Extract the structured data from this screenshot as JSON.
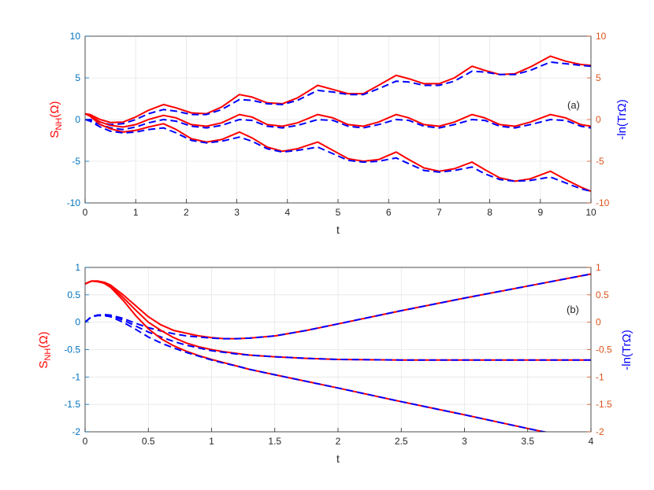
{
  "colors": {
    "left_axis": "#0072BD",
    "right_axis": "#D95319",
    "solid": "#ff0000",
    "dashed": "#0000ff",
    "grid": "#e6e6e6",
    "box": "#262626"
  },
  "chart_data": [
    {
      "type": "line",
      "panel_label": "(a)",
      "xlabel": "t",
      "ylabel_left": {
        "main": "S",
        "sub": "NH",
        "rest": "(Ω)"
      },
      "ylabel_right": "-ln(TrΩ)",
      "xlim": [
        0,
        10
      ],
      "ylim": [
        -10,
        10
      ],
      "grid": true,
      "xticks": [
        "0",
        "1",
        "2",
        "3",
        "4",
        "5",
        "6",
        "7",
        "8",
        "9",
        "10"
      ],
      "yticks_left": [
        "10",
        "5",
        "0",
        "-5",
        "-10"
      ],
      "yticks_right": [
        "10",
        "5",
        "0",
        "-5",
        "-10"
      ],
      "tick_values_x": [
        0,
        1,
        2,
        3,
        4,
        5,
        6,
        7,
        8,
        9,
        10
      ],
      "tick_values_y": [
        10,
        5,
        0,
        -5,
        -10
      ],
      "series": [
        {
          "style": "solid",
          "color": "#ff0000",
          "x": [
            0,
            0.1,
            0.3,
            0.5,
            0.75,
            1,
            1.25,
            1.55,
            1.8,
            2.1,
            2.4,
            2.7,
            3.05,
            3.3,
            3.6,
            3.9,
            4.2,
            4.6,
            4.9,
            5.2,
            5.5,
            5.8,
            6.15,
            6.4,
            6.7,
            7,
            7.3,
            7.65,
            7.9,
            8.2,
            8.5,
            8.8,
            9.2,
            9.5,
            9.8,
            10
          ],
          "y": [
            0.7,
            0.6,
            0,
            -0.35,
            -0.3,
            0.3,
            1.1,
            1.8,
            1.4,
            0.8,
            0.7,
            1.5,
            3.0,
            2.7,
            2.0,
            1.9,
            2.6,
            4.1,
            3.6,
            3.1,
            3.1,
            4.1,
            5.3,
            4.9,
            4.3,
            4.3,
            5.0,
            6.4,
            5.9,
            5.4,
            5.5,
            6.3,
            7.6,
            7.0,
            6.6,
            6.5
          ]
        },
        {
          "style": "dashed",
          "color": "#0000ff",
          "x": [
            0,
            0.1,
            0.3,
            0.5,
            0.75,
            1,
            1.25,
            1.55,
            1.8,
            2.1,
            2.4,
            2.7,
            3.05,
            3.3,
            3.6,
            3.9,
            4.2,
            4.6,
            4.9,
            5.2,
            5.5,
            5.8,
            6.15,
            6.4,
            6.7,
            7,
            7.3,
            7.65,
            7.9,
            8.2,
            8.5,
            8.8,
            9.2,
            9.5,
            9.8,
            10
          ],
          "y": [
            0,
            0,
            -0.3,
            -0.6,
            -0.5,
            0,
            0.7,
            1.2,
            1.0,
            0.6,
            0.6,
            1.2,
            2.4,
            2.3,
            1.9,
            1.8,
            2.3,
            3.5,
            3.3,
            3.0,
            3.0,
            3.7,
            4.6,
            4.5,
            4.1,
            4.1,
            4.6,
            5.8,
            5.7,
            5.4,
            5.4,
            5.9,
            6.9,
            6.7,
            6.5,
            6.4
          ]
        },
        {
          "style": "solid",
          "color": "#ff0000",
          "x": [
            0,
            0.1,
            0.3,
            0.5,
            0.75,
            1,
            1.25,
            1.55,
            1.8,
            2.1,
            2.4,
            2.7,
            3.05,
            3.3,
            3.6,
            3.9,
            4.2,
            4.6,
            4.9,
            5.2,
            5.5,
            5.8,
            6.15,
            6.4,
            6.7,
            7,
            7.3,
            7.65,
            7.9,
            8.2,
            8.5,
            8.8,
            9.2,
            9.5,
            9.8,
            10
          ],
          "y": [
            0.7,
            0.5,
            -0.3,
            -0.7,
            -0.9,
            -0.6,
            0,
            0.5,
            0.2,
            -0.6,
            -0.8,
            -0.4,
            0.6,
            0.3,
            -0.6,
            -0.8,
            -0.4,
            0.6,
            0.2,
            -0.6,
            -0.8,
            -0.3,
            0.6,
            0.2,
            -0.6,
            -0.8,
            -0.3,
            0.6,
            0.2,
            -0.6,
            -0.8,
            -0.3,
            0.6,
            0.2,
            -0.6,
            -0.8
          ]
        },
        {
          "style": "dashed",
          "color": "#0000ff",
          "x": [
            0,
            0.1,
            0.3,
            0.5,
            0.75,
            1,
            1.25,
            1.55,
            1.8,
            2.1,
            2.4,
            2.7,
            3.05,
            3.3,
            3.6,
            3.9,
            4.2,
            4.6,
            4.9,
            5.2,
            5.5,
            5.8,
            6.15,
            6.4,
            6.7,
            7,
            7.3,
            7.65,
            7.9,
            8.2,
            8.5,
            8.8,
            9.2,
            9.5,
            9.8,
            10
          ],
          "y": [
            0,
            -0.1,
            -0.6,
            -1.0,
            -1.2,
            -0.9,
            -0.4,
            0,
            -0.2,
            -0.8,
            -1.0,
            -0.7,
            0,
            -0.1,
            -0.8,
            -1.0,
            -0.7,
            0,
            -0.1,
            -0.8,
            -1.0,
            -0.6,
            0,
            -0.1,
            -0.8,
            -1.0,
            -0.6,
            0,
            -0.1,
            -0.8,
            -1.0,
            -0.6,
            0,
            -0.1,
            -0.8,
            -1.0
          ]
        },
        {
          "style": "solid",
          "color": "#ff0000",
          "x": [
            0,
            0.1,
            0.3,
            0.5,
            0.75,
            1,
            1.25,
            1.55,
            1.8,
            2.1,
            2.4,
            2.7,
            3.05,
            3.3,
            3.6,
            3.9,
            4.2,
            4.6,
            4.9,
            5.2,
            5.5,
            5.8,
            6.15,
            6.4,
            6.7,
            7,
            7.3,
            7.65,
            7.9,
            8.2,
            8.5,
            8.8,
            9.2,
            9.5,
            9.8,
            10
          ],
          "y": [
            0.7,
            0.4,
            -0.6,
            -1.1,
            -1.5,
            -1.3,
            -0.9,
            -0.5,
            -1.2,
            -2.3,
            -2.7,
            -2.4,
            -1.5,
            -2.2,
            -3.3,
            -3.8,
            -3.5,
            -2.7,
            -3.7,
            -4.7,
            -5.0,
            -4.8,
            -3.9,
            -4.8,
            -5.8,
            -6.2,
            -5.9,
            -5.1,
            -6.0,
            -7.0,
            -7.4,
            -7.1,
            -6.2,
            -7.2,
            -8.1,
            -8.6
          ]
        },
        {
          "style": "dashed",
          "color": "#0000ff",
          "x": [
            0,
            0.1,
            0.3,
            0.5,
            0.75,
            1,
            1.25,
            1.55,
            1.8,
            2.1,
            2.4,
            2.7,
            3.05,
            3.3,
            3.6,
            3.9,
            4.2,
            4.6,
            4.9,
            5.2,
            5.5,
            5.8,
            6.15,
            6.4,
            6.7,
            7,
            7.3,
            7.65,
            7.9,
            8.2,
            8.5,
            8.8,
            9.2,
            9.5,
            9.8,
            10
          ],
          "y": [
            0,
            -0.2,
            -0.9,
            -1.4,
            -1.6,
            -1.5,
            -1.2,
            -1.0,
            -1.6,
            -2.5,
            -2.8,
            -2.6,
            -2.1,
            -2.6,
            -3.5,
            -3.9,
            -3.7,
            -3.3,
            -4.1,
            -4.9,
            -5.1,
            -5.0,
            -4.6,
            -5.3,
            -6.1,
            -6.3,
            -6.1,
            -5.7,
            -6.5,
            -7.2,
            -7.4,
            -7.3,
            -6.9,
            -7.6,
            -8.3,
            -8.6
          ]
        }
      ]
    },
    {
      "type": "line",
      "panel_label": "(b)",
      "xlabel": "t",
      "ylabel_left": {
        "main": "S",
        "sub": "NH",
        "rest": "(Ω)"
      },
      "ylabel_right": "-ln(TrΩ)",
      "xlim": [
        0,
        4
      ],
      "ylim": [
        -2,
        1
      ],
      "grid": true,
      "xticks": [
        "0",
        "0.5",
        "1",
        "1.5",
        "2",
        "2.5",
        "3",
        "3.5",
        "4"
      ],
      "yticks_left": [
        "1",
        "0.5",
        "0",
        "-0.5",
        "-1",
        "-1.5",
        "-2"
      ],
      "yticks_right": [
        "1",
        "0.5",
        "0",
        "-0.5",
        "-1",
        "-1.5",
        "-2"
      ],
      "tick_values_x": [
        0,
        0.5,
        1,
        1.5,
        2,
        2.5,
        3,
        3.5,
        4
      ],
      "tick_values_y": [
        1,
        0.5,
        0,
        -0.5,
        -1,
        -1.5,
        -2
      ],
      "series": [
        {
          "style": "solid",
          "color": "#ff0000",
          "x": [
            0,
            0.05,
            0.1,
            0.15,
            0.2,
            0.3,
            0.4,
            0.5,
            0.6,
            0.7,
            0.8,
            0.9,
            1.0,
            1.1,
            1.2,
            1.3,
            1.5,
            1.75,
            2,
            2.5,
            3,
            3.5,
            4
          ],
          "y": [
            0.7,
            0.75,
            0.75,
            0.73,
            0.68,
            0.5,
            0.3,
            0.1,
            -0.05,
            -0.15,
            -0.2,
            -0.25,
            -0.28,
            -0.3,
            -0.3,
            -0.29,
            -0.25,
            -0.15,
            -0.03,
            0.21,
            0.44,
            0.66,
            0.88
          ]
        },
        {
          "style": "dashed",
          "color": "#0000ff",
          "x": [
            0,
            0.05,
            0.1,
            0.15,
            0.2,
            0.3,
            0.4,
            0.5,
            0.6,
            0.7,
            0.8,
            0.9,
            1.0,
            1.1,
            1.2,
            1.3,
            1.5,
            1.75,
            2,
            2.5,
            3,
            3.5,
            4
          ],
          "y": [
            0,
            0.1,
            0.13,
            0.14,
            0.13,
            0.07,
            -0.02,
            -0.1,
            -0.16,
            -0.21,
            -0.25,
            -0.27,
            -0.29,
            -0.3,
            -0.3,
            -0.29,
            -0.25,
            -0.15,
            -0.03,
            0.21,
            0.44,
            0.66,
            0.88
          ]
        },
        {
          "style": "solid",
          "color": "#ff0000",
          "x": [
            0,
            0.05,
            0.1,
            0.15,
            0.2,
            0.3,
            0.4,
            0.5,
            0.6,
            0.7,
            0.8,
            0.9,
            1.0,
            1.1,
            1.2,
            1.3,
            1.5,
            1.75,
            2,
            2.5,
            3,
            3.5,
            4
          ],
          "y": [
            0.7,
            0.75,
            0.75,
            0.72,
            0.66,
            0.45,
            0.22,
            0.0,
            -0.15,
            -0.28,
            -0.38,
            -0.45,
            -0.5,
            -0.54,
            -0.57,
            -0.6,
            -0.63,
            -0.66,
            -0.68,
            -0.69,
            -0.69,
            -0.69,
            -0.69
          ]
        },
        {
          "style": "dashed",
          "color": "#0000ff",
          "x": [
            0,
            0.05,
            0.1,
            0.15,
            0.2,
            0.3,
            0.4,
            0.5,
            0.6,
            0.7,
            0.8,
            0.9,
            1.0,
            1.1,
            1.2,
            1.3,
            1.5,
            1.75,
            2,
            2.5,
            3,
            3.5,
            4
          ],
          "y": [
            0,
            0.1,
            0.13,
            0.13,
            0.12,
            0.04,
            -0.07,
            -0.18,
            -0.27,
            -0.35,
            -0.42,
            -0.47,
            -0.52,
            -0.55,
            -0.58,
            -0.6,
            -0.63,
            -0.66,
            -0.68,
            -0.69,
            -0.69,
            -0.69,
            -0.69
          ]
        },
        {
          "style": "solid",
          "color": "#ff0000",
          "x": [
            0,
            0.05,
            0.1,
            0.15,
            0.2,
            0.3,
            0.4,
            0.5,
            0.6,
            0.7,
            0.8,
            0.9,
            1.0,
            1.1,
            1.2,
            1.3,
            1.5,
            1.75,
            2,
            2.5,
            3,
            3.5,
            4
          ],
          "y": [
            0.7,
            0.75,
            0.74,
            0.71,
            0.64,
            0.4,
            0.12,
            -0.12,
            -0.3,
            -0.43,
            -0.53,
            -0.61,
            -0.68,
            -0.74,
            -0.8,
            -0.86,
            -0.96,
            -1.08,
            -1.2,
            -1.45,
            -1.69,
            -1.94,
            -2.18
          ]
        },
        {
          "style": "dashed",
          "color": "#0000ff",
          "x": [
            0,
            0.05,
            0.1,
            0.15,
            0.2,
            0.3,
            0.4,
            0.5,
            0.6,
            0.7,
            0.8,
            0.9,
            1.0,
            1.1,
            1.2,
            1.3,
            1.5,
            1.75,
            2,
            2.5,
            3,
            3.5,
            4
          ],
          "y": [
            0,
            0.1,
            0.12,
            0.12,
            0.1,
            0.0,
            -0.13,
            -0.27,
            -0.38,
            -0.47,
            -0.55,
            -0.62,
            -0.69,
            -0.75,
            -0.8,
            -0.86,
            -0.96,
            -1.08,
            -1.2,
            -1.45,
            -1.69,
            -1.94,
            -2.18
          ]
        }
      ]
    }
  ]
}
